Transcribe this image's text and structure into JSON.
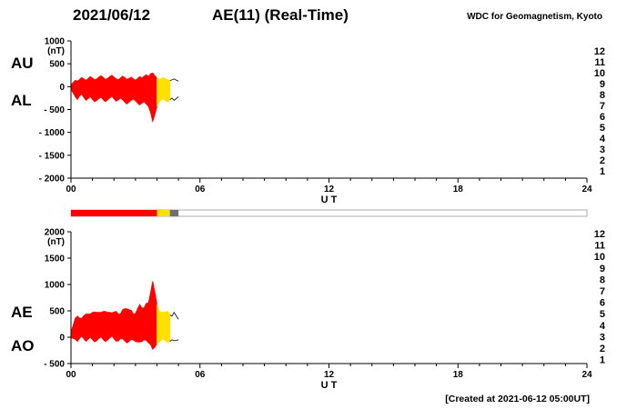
{
  "header": {
    "date": "2021/06/12",
    "title": "AE(11) (Real-Time)",
    "source": "WDC for Geomagnetism, Kyoto"
  },
  "footer": {
    "created": "[Created at 2021-06-12 05:00UT]"
  },
  "legend": {
    "counts": [
      12,
      11,
      10,
      9,
      8,
      7,
      6,
      5,
      4,
      3,
      2,
      1
    ],
    "colors": [
      "#ff3cb4",
      "#ff0000",
      "#ff9000",
      "#ffd800",
      "#c8d400",
      "#30c8f0",
      "#2850ff",
      "#7040d0",
      "#c048c8",
      "#404040",
      "#808080",
      "#c0c0c0"
    ]
  },
  "availability_bar": {
    "range": [
      0,
      24
    ],
    "empty_color": "#ffffff",
    "border_color": "#999999",
    "segments": [
      {
        "start": 0.0,
        "end": 4.0,
        "color": "#ff0000",
        "stations": 11
      },
      {
        "start": 4.0,
        "end": 4.6,
        "color": "#ffe000",
        "stations": 9
      },
      {
        "start": 4.6,
        "end": 5.0,
        "color": "#707070",
        "stations": 2
      }
    ]
  },
  "chart_data": [
    {
      "type": "area",
      "name": "au-al",
      "ylabel": "(nT)",
      "ylim": [
        -2000,
        1000
      ],
      "yticks": [
        1000,
        500,
        0,
        -500,
        -1000,
        -1500,
        -2000
      ],
      "ytick_labels": [
        "1000",
        "500",
        "0",
        "- 500",
        "- 1000",
        "- 1500",
        "- 2000"
      ],
      "xlim": [
        0,
        24
      ],
      "xticks": [
        0,
        6,
        12,
        18,
        24
      ],
      "xtick_labels": [
        "00",
        "06",
        "12",
        "18",
        "24"
      ],
      "xlabel": "U T",
      "t_start": 0.0,
      "t_step": 0.1,
      "upper": {
        "name": "AU",
        "values": [
          40,
          90,
          140,
          120,
          160,
          200,
          170,
          140,
          180,
          220,
          190,
          150,
          170,
          210,
          240,
          200,
          160,
          180,
          220,
          250,
          210,
          170,
          150,
          190,
          230,
          200,
          160,
          180,
          210,
          170,
          140,
          180,
          220,
          190,
          230,
          260,
          220,
          280,
          300,
          240,
          190,
          160,
          180,
          200,
          170,
          150,
          130,
          150,
          170,
          140,
          120
        ]
      },
      "lower": {
        "name": "AL",
        "values": [
          -60,
          -140,
          -220,
          -280,
          -200,
          -160,
          -240,
          -300,
          -260,
          -220,
          -280,
          -330,
          -300,
          -260,
          -230,
          -290,
          -330,
          -290,
          -250,
          -210,
          -270,
          -320,
          -290,
          -250,
          -290,
          -340,
          -380,
          -340,
          -300,
          -270,
          -310,
          -360,
          -400,
          -360,
          -330,
          -380,
          -430,
          -560,
          -760,
          -620,
          -430,
          -340,
          -290,
          -270,
          -310,
          -340,
          -290,
          -250,
          -300,
          -260,
          -220
        ]
      },
      "segments": [
        {
          "start": 0.0,
          "end": 4.0,
          "color": "#ff0000",
          "stations": 11,
          "line_only": false
        },
        {
          "start": 4.0,
          "end": 4.6,
          "color": "#ffe000",
          "stations": 9,
          "line_only": false
        },
        {
          "start": 4.6,
          "end": 5.0,
          "color": "#303030",
          "stations": 2,
          "line_only": true
        }
      ]
    },
    {
      "type": "area",
      "name": "ae-ao",
      "ylabel": "(nT)",
      "ylim": [
        -500,
        2000
      ],
      "yticks": [
        2000,
        1500,
        1000,
        500,
        0,
        -500
      ],
      "ytick_labels": [
        "2000",
        "1500",
        "1000",
        "500",
        "0",
        "- 500"
      ],
      "xlim": [
        0,
        24
      ],
      "xticks": [
        0,
        6,
        12,
        18,
        24
      ],
      "xtick_labels": [
        "00",
        "06",
        "12",
        "18",
        "24"
      ],
      "xlabel": "U T",
      "t_start": 0.0,
      "t_step": 0.1,
      "upper": {
        "name": "AE",
        "values": [
          100,
          230,
          360,
          400,
          360,
          360,
          410,
          440,
          440,
          440,
          470,
          480,
          470,
          470,
          470,
          490,
          490,
          470,
          470,
          460,
          480,
          490,
          440,
          440,
          520,
          540,
          540,
          520,
          510,
          440,
          450,
          540,
          620,
          550,
          560,
          640,
          650,
          840,
          1060,
          860,
          620,
          500,
          470,
          470,
          480,
          490,
          420,
          400,
          470,
          400,
          340
        ]
      },
      "lower": {
        "name": "AO",
        "values": [
          -10,
          -25,
          -40,
          -80,
          -20,
          20,
          -35,
          -80,
          -40,
          0,
          -45,
          -90,
          -65,
          -25,
          5,
          -45,
          -85,
          -55,
          -15,
          20,
          -30,
          -75,
          -70,
          -30,
          -30,
          -70,
          -110,
          -80,
          -45,
          -50,
          -85,
          -90,
          -90,
          -85,
          -50,
          -60,
          -105,
          -140,
          -230,
          -190,
          -120,
          -90,
          -55,
          -35,
          -70,
          -95,
          -80,
          -50,
          -65,
          -60,
          -50
        ]
      },
      "segments": [
        {
          "start": 0.0,
          "end": 4.0,
          "color": "#ff0000",
          "stations": 11,
          "line_only": false
        },
        {
          "start": 4.0,
          "end": 4.6,
          "color": "#ffe000",
          "stations": 9,
          "line_only": false
        },
        {
          "start": 4.6,
          "end": 5.0,
          "color": "#303030",
          "stations": 2,
          "line_only": true
        }
      ]
    }
  ]
}
